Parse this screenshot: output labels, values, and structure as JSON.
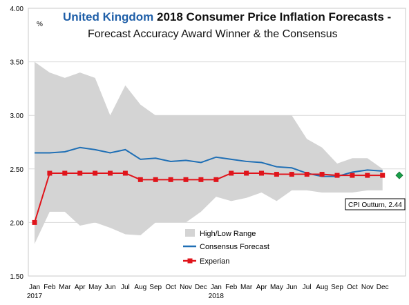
{
  "chart_data": {
    "type": "line",
    "title_part1": "United Kingdom",
    "title_part2": " 2018 Consumer Price Inflation Forecasts -",
    "subtitle": "Forecast Accuracy Award Winner & the Consensus",
    "ylabel": "%",
    "ylim": [
      1.5,
      4.0
    ],
    "yticks": [
      "1.50",
      "2.00",
      "2.50",
      "3.00",
      "3.50",
      "4.00"
    ],
    "categories": [
      "Jan",
      "Feb",
      "Mar",
      "Apr",
      "May",
      "Jun",
      "Jul",
      "Aug",
      "Sep",
      "Oct",
      "Nov",
      "Dec",
      "Jan",
      "Feb",
      "Mar",
      "Apr",
      "May",
      "Jun",
      "Jul",
      "Aug",
      "Sep",
      "Oct",
      "Nov",
      "Dec"
    ],
    "year_labels": [
      {
        "index": 0,
        "label": "2017"
      },
      {
        "index": 12,
        "label": "2018"
      }
    ],
    "range": {
      "name": "High/Low Range",
      "high": [
        3.5,
        3.4,
        3.35,
        3.4,
        3.35,
        3.0,
        3.28,
        3.1,
        3.0,
        3.0,
        3.0,
        3.0,
        3.0,
        3.0,
        3.0,
        3.0,
        3.0,
        3.0,
        2.78,
        2.7,
        2.55,
        2.6,
        2.6,
        2.5
      ],
      "low": [
        1.8,
        2.1,
        2.1,
        1.97,
        2.0,
        1.95,
        1.89,
        1.88,
        2.0,
        2.0,
        2.0,
        2.1,
        2.24,
        2.2,
        2.23,
        2.28,
        2.2,
        2.3,
        2.3,
        2.28,
        2.28,
        2.28,
        2.3,
        2.3
      ]
    },
    "series": [
      {
        "name": "Consensus Forecast",
        "color": "#1f6fb5",
        "values": [
          2.65,
          2.65,
          2.66,
          2.7,
          2.68,
          2.65,
          2.68,
          2.59,
          2.6,
          2.57,
          2.58,
          2.56,
          2.61,
          2.59,
          2.57,
          2.56,
          2.52,
          2.51,
          2.46,
          2.43,
          2.43,
          2.47,
          2.49,
          2.48
        ]
      },
      {
        "name": "Experian",
        "color": "#e0141b",
        "values": [
          2.0,
          2.46,
          2.46,
          2.46,
          2.46,
          2.46,
          2.46,
          2.4,
          2.4,
          2.4,
          2.4,
          2.4,
          2.4,
          2.46,
          2.46,
          2.46,
          2.45,
          2.45,
          2.45,
          2.45,
          2.44,
          2.44,
          2.44,
          2.44
        ]
      }
    ],
    "outturn": {
      "label": "CPI Outturn, 2.44",
      "value": 2.44,
      "color": "#1aa04a"
    },
    "grid": true,
    "legend": "bottom-center"
  }
}
